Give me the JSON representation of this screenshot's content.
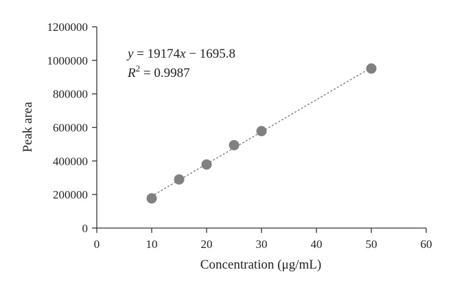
{
  "chart_data": {
    "type": "scatter",
    "xlabel": "Concentration (μg/mL)",
    "ylabel": "Peak area",
    "xlim": [
      0,
      60
    ],
    "ylim": [
      0,
      1200000
    ],
    "xticks": [
      0,
      10,
      20,
      30,
      40,
      50,
      60
    ],
    "yticks": [
      0,
      200000,
      400000,
      600000,
      800000,
      1000000,
      1200000
    ],
    "grid": false,
    "points": [
      {
        "x": 10,
        "y": 177000
      },
      {
        "x": 15,
        "y": 290000
      },
      {
        "x": 20,
        "y": 379000
      },
      {
        "x": 25,
        "y": 494000
      },
      {
        "x": 30,
        "y": 578000
      },
      {
        "x": 50,
        "y": 951000
      }
    ],
    "trendline": {
      "slope": 19174,
      "intercept": -1695.8,
      "style": "dotted"
    },
    "equation": {
      "y_var": "y",
      "eq_rest": " = 19174",
      "x_var": "x",
      "tail": " − 1695.8",
      "r_var": "R",
      "r_exp": "2",
      "r_value": " = 0.9987"
    },
    "colors": {
      "marker": "#808080",
      "axis": "#333333",
      "trendline": "#888888"
    }
  }
}
